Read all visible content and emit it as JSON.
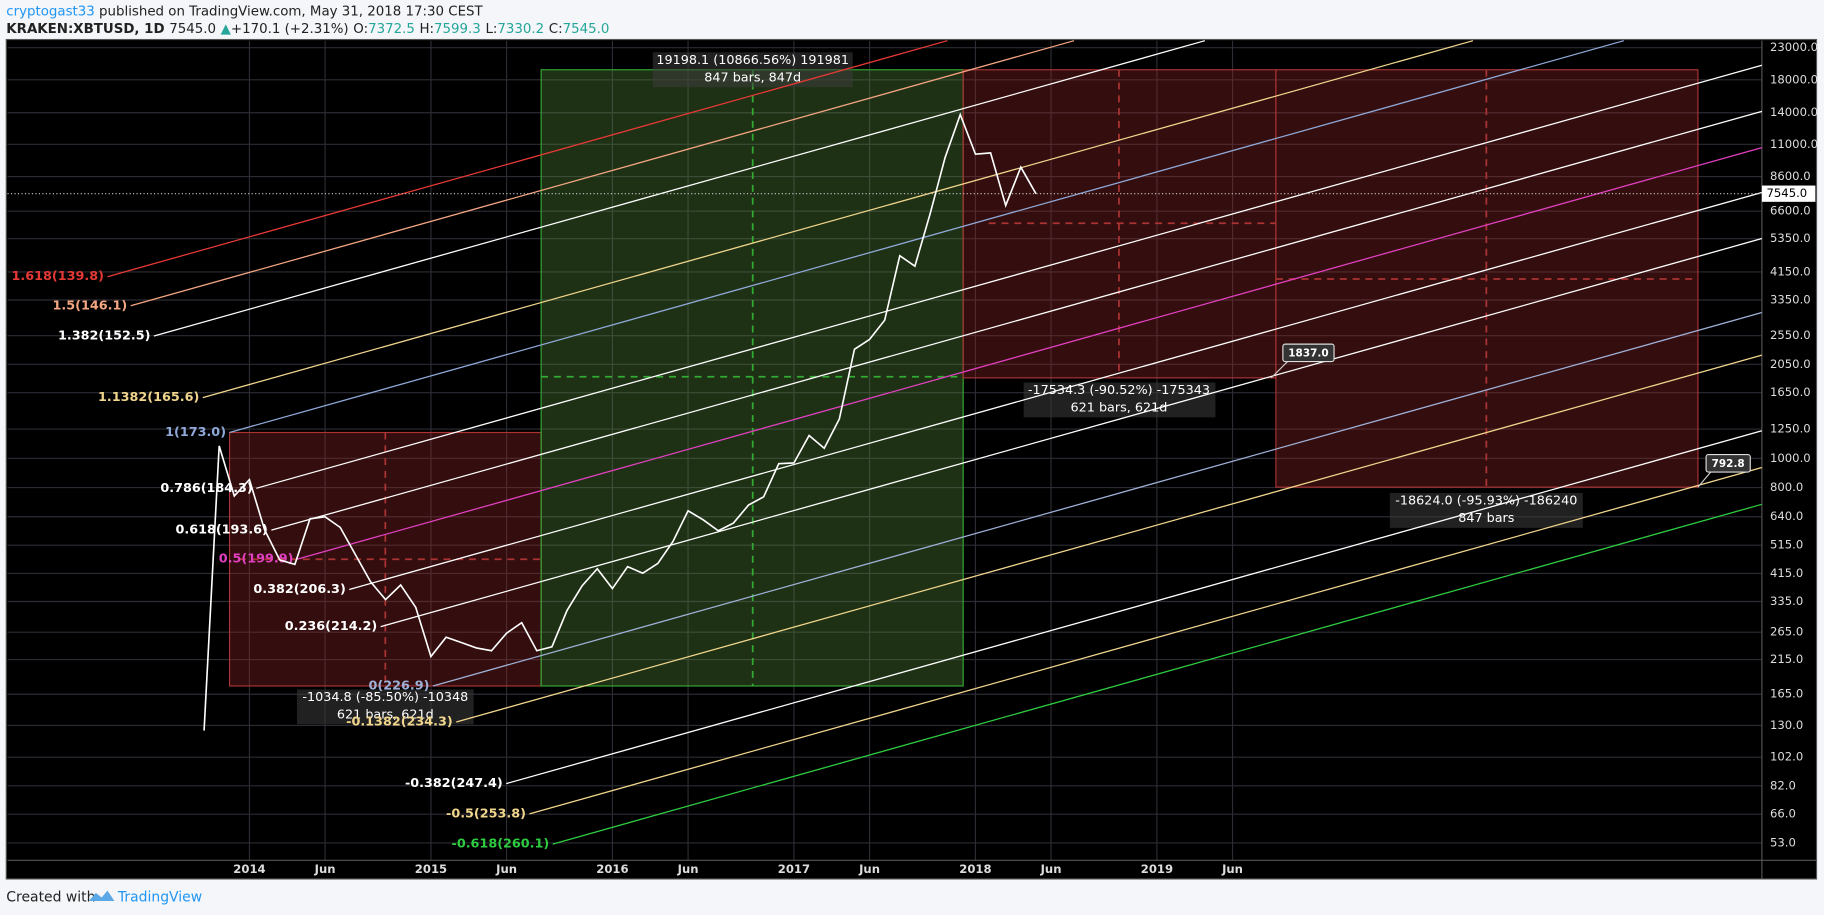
{
  "header": {
    "author": "cryptogast33",
    "published": "published on TradingView.com, May 31, 2018 17:30 CEST",
    "symbol": "KRAKEN:XBTUSD, 1D",
    "last": "7545.0",
    "arrow": "▲",
    "change": "+170.1 (+2.31%)",
    "o_label": "O:",
    "open": "7372.5",
    "h_label": "H:",
    "high": "7599.3",
    "l_label": "L:",
    "low": "7330.2",
    "c_label": "C:",
    "close": "7545.0"
  },
  "chart_data": {
    "type": "line",
    "log_scale": true,
    "grid": true,
    "color": "#ffffff",
    "x": [
      "2013-10",
      "2013-11",
      "2013-12",
      "2014-01",
      "2014-02",
      "2014-03",
      "2014-04",
      "2014-05",
      "2014-06",
      "2014-07",
      "2014-08",
      "2014-09",
      "2014-10",
      "2014-11",
      "2014-12",
      "2015-01",
      "2015-02",
      "2015-03",
      "2015-04",
      "2015-05",
      "2015-06",
      "2015-07",
      "2015-08",
      "2015-09",
      "2015-10",
      "2015-11",
      "2015-12",
      "2016-01",
      "2016-02",
      "2016-03",
      "2016-04",
      "2016-05",
      "2016-06",
      "2016-07",
      "2016-08",
      "2016-09",
      "2016-10",
      "2016-11",
      "2016-12",
      "2017-01",
      "2017-02",
      "2017-03",
      "2017-04",
      "2017-05",
      "2017-06",
      "2017-07",
      "2017-08",
      "2017-09",
      "2017-10",
      "2017-11",
      "2017-12",
      "2018-01",
      "2018-02",
      "2018-03",
      "2018-04",
      "2018-05"
    ],
    "values": [
      125,
      1100,
      750,
      850,
      580,
      460,
      445,
      630,
      640,
      590,
      480,
      390,
      340,
      380,
      320,
      220,
      255,
      245,
      235,
      230,
      263,
      285,
      230,
      237,
      313,
      378,
      430,
      370,
      437,
      416,
      448,
      530,
      670,
      625,
      575,
      610,
      700,
      745,
      960,
      965,
      1190,
      1080,
      1350,
      2300,
      2480,
      2870,
      4700,
      4340,
      6450,
      9950,
      13800,
      10200,
      10300,
      6900,
      9240,
      7545
    ],
    "xlim": [
      "2012-09",
      "2022-05"
    ],
    "xticks": [
      {
        "value": "2014-01",
        "label": "2014"
      },
      {
        "value": "2014-06",
        "label": "Jun"
      },
      {
        "value": "2015-01",
        "label": "2015"
      },
      {
        "value": "2015-06",
        "label": "Jun"
      },
      {
        "value": "2016-01",
        "label": "2016"
      },
      {
        "value": "2016-06",
        "label": "Jun"
      },
      {
        "value": "2017-01",
        "label": "2017"
      },
      {
        "value": "2017-06",
        "label": "Jun"
      },
      {
        "value": "2018-01",
        "label": "2018"
      },
      {
        "value": "2018-06",
        "label": "Jun"
      },
      {
        "value": "2019-01",
        "label": "2019"
      },
      {
        "value": "2019-06",
        "label": "Jun"
      }
    ],
    "ylim": [
      46.4,
      24270
    ],
    "yticks": [
      {
        "value": 23000,
        "label": "23000.0"
      },
      {
        "value": 18000,
        "label": "18000.0"
      },
      {
        "value": 14000,
        "label": "14000.0"
      },
      {
        "value": 11000,
        "label": "11000.0"
      },
      {
        "value": 8600,
        "label": "8600.0"
      },
      {
        "value": 6600,
        "label": "6600.0"
      },
      {
        "value": 5350,
        "label": "5350.0"
      },
      {
        "value": 4150,
        "label": "4150.0"
      },
      {
        "value": 3350,
        "label": "3350.0"
      },
      {
        "value": 2550,
        "label": "2550.0"
      },
      {
        "value": 2050,
        "label": "2050.0"
      },
      {
        "value": 1650,
        "label": "1650.0"
      },
      {
        "value": 1250,
        "label": "1250.0"
      },
      {
        "value": 1000,
        "label": "1000.0"
      },
      {
        "value": 800,
        "label": "800.0"
      },
      {
        "value": 640,
        "label": "640.0"
      },
      {
        "value": 515,
        "label": "515.0"
      },
      {
        "value": 415,
        "label": "415.0"
      },
      {
        "value": 335,
        "label": "335.0"
      },
      {
        "value": 265,
        "label": "265.0"
      },
      {
        "value": 215,
        "label": "215.0"
      },
      {
        "value": 165,
        "label": "165.0"
      },
      {
        "value": 130,
        "label": "130.0"
      },
      {
        "value": 102,
        "label": "102.0"
      },
      {
        "value": 82,
        "label": "82.0"
      },
      {
        "value": 66,
        "label": "66.0"
      },
      {
        "value": 53,
        "label": "53.0"
      }
    ],
    "last_price": {
      "value": 7545,
      "label": "7545.0"
    },
    "fib_levels": [
      {
        "label": "1.618(139.8)",
        "color": "#e53935"
      },
      {
        "label": "1.5(146.1)",
        "color": "#f4a582"
      },
      {
        "label": "1.382(152.5)",
        "color": "#ffffff"
      },
      {
        "label": "1.1382(165.6)",
        "color": "#f0d58c"
      },
      {
        "label": "1(173.0)",
        "color": "#8fa8d8"
      },
      {
        "label": "0.786(184.3)",
        "color": "#ffffff"
      },
      {
        "label": "0.618(193.6)",
        "color": "#ffffff"
      },
      {
        "label": "0.5(199.9)",
        "color": "#e040c0"
      },
      {
        "label": "0.382(206.3)",
        "color": "#ffffff"
      },
      {
        "label": "0.236(214.2)",
        "color": "#ffffff"
      },
      {
        "label": "0(226.9)",
        "color": "#9fb0d8"
      },
      {
        "label": "-0.1382(234.3)",
        "color": "#f0d58c"
      },
      {
        "label": "-0.382(247.4)",
        "color": "#ffffff"
      },
      {
        "label": "-0.5(253.8)",
        "color": "#f0d58c"
      },
      {
        "label": "-0.618(260.1)",
        "color": "#2ecc40"
      }
    ],
    "measures": [
      {
        "lines": [
          "-1034.8 (-85.50%) -10348",
          "621 bars, 621d"
        ]
      },
      {
        "lines": [
          "19198.1 (10866.56%) 191981",
          "847 bars, 847d"
        ]
      },
      {
        "lines": [
          "-17534.3 (-90.52%) -175343",
          "621 bars, 621d"
        ]
      },
      {
        "lines": [
          "-18624.0 (-95.93%) -186240",
          "847 bars"
        ]
      }
    ],
    "callouts": [
      "1837.0",
      "792.8"
    ]
  },
  "footer": {
    "created": "Created with",
    "brand": "TradingView"
  }
}
